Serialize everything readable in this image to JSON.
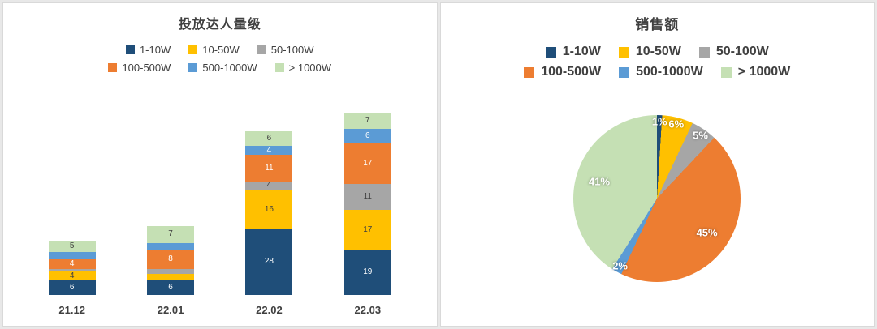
{
  "chart_data": [
    {
      "type": "bar",
      "variant": "stacked",
      "title": "投放达人量级",
      "categories": [
        "21.12",
        "22.01",
        "22.02",
        "22.03"
      ],
      "axis_max": 80,
      "grid": false,
      "legend_position": "top",
      "series": [
        {
          "name": "1-10W",
          "color": "#1F4E79",
          "label_color": "#ffffff",
          "values": [
            6,
            6,
            28,
            19
          ]
        },
        {
          "name": "10-50W",
          "color": "#FFC000",
          "label_color": "#404040",
          "values": [
            4,
            3,
            16,
            17
          ]
        },
        {
          "name": "50-100W",
          "color": "#A6A6A6",
          "label_color": "#404040",
          "values": [
            1,
            2,
            4,
            11
          ]
        },
        {
          "name": "100-500W",
          "color": "#ED7D31",
          "label_color": "#ffffff",
          "values": [
            4,
            8,
            11,
            17
          ]
        },
        {
          "name": "500-1000W",
          "color": "#5B9BD5",
          "label_color": "#ffffff",
          "values": [
            3,
            3,
            4,
            6
          ]
        },
        {
          "name": "> 1000W",
          "color": "#C5E0B4",
          "label_color": "#404040",
          "values": [
            5,
            7,
            6,
            7
          ]
        }
      ]
    },
    {
      "type": "pie",
      "title": "销售额",
      "start_angle_deg": 0,
      "direction": "clockwise",
      "legend_position": "top",
      "slices": [
        {
          "name": "1-10W",
          "color": "#1F4E79",
          "value": 1,
          "label": "1%"
        },
        {
          "name": "10-50W",
          "color": "#FFC000",
          "value": 6,
          "label": "6%"
        },
        {
          "name": "50-100W",
          "color": "#A6A6A6",
          "value": 5,
          "label": "5%"
        },
        {
          "name": "100-500W",
          "color": "#ED7D31",
          "value": 45,
          "label": "45%"
        },
        {
          "name": "500-1000W",
          "color": "#5B9BD5",
          "value": 2,
          "label": "2%"
        },
        {
          "name": "> 1000W",
          "color": "#C5E0B4",
          "value": 41,
          "label": "41%"
        }
      ]
    }
  ]
}
